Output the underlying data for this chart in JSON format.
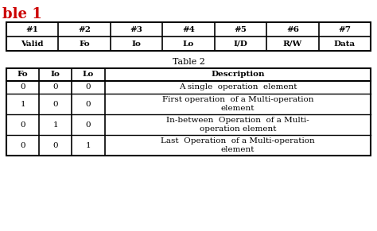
{
  "title1": "ble 1",
  "title1_color": "#cc0000",
  "table1_headers_row1": [
    "#1",
    "#2",
    "#3",
    "#4",
    "#5",
    "#6",
    "#7"
  ],
  "table1_headers_row2": [
    "Valid",
    "Fo",
    "Io",
    "Lo",
    "I/D",
    "R/W",
    "Data"
  ],
  "title2": "Table 2",
  "table2_col_headers": [
    "Fo",
    "Io",
    "Lo",
    "Description"
  ],
  "table2_rows": [
    [
      "0",
      "0",
      "0",
      "A single  operation  element"
    ],
    [
      "1",
      "0",
      "0",
      "First operation  of a Multi-operation\nelement"
    ],
    [
      "0",
      "1",
      "0",
      "In-between  Operation  of a Multi-\noperation element"
    ],
    [
      "0",
      "0",
      "1",
      "Last  Operation  of a Multi-operation\nelement"
    ]
  ],
  "bg_color": "#ffffff",
  "border_color": "#000000",
  "text_color": "#000000",
  "title1_fontsize": 13,
  "table_fontsize": 7.5,
  "title2_fontsize": 8
}
